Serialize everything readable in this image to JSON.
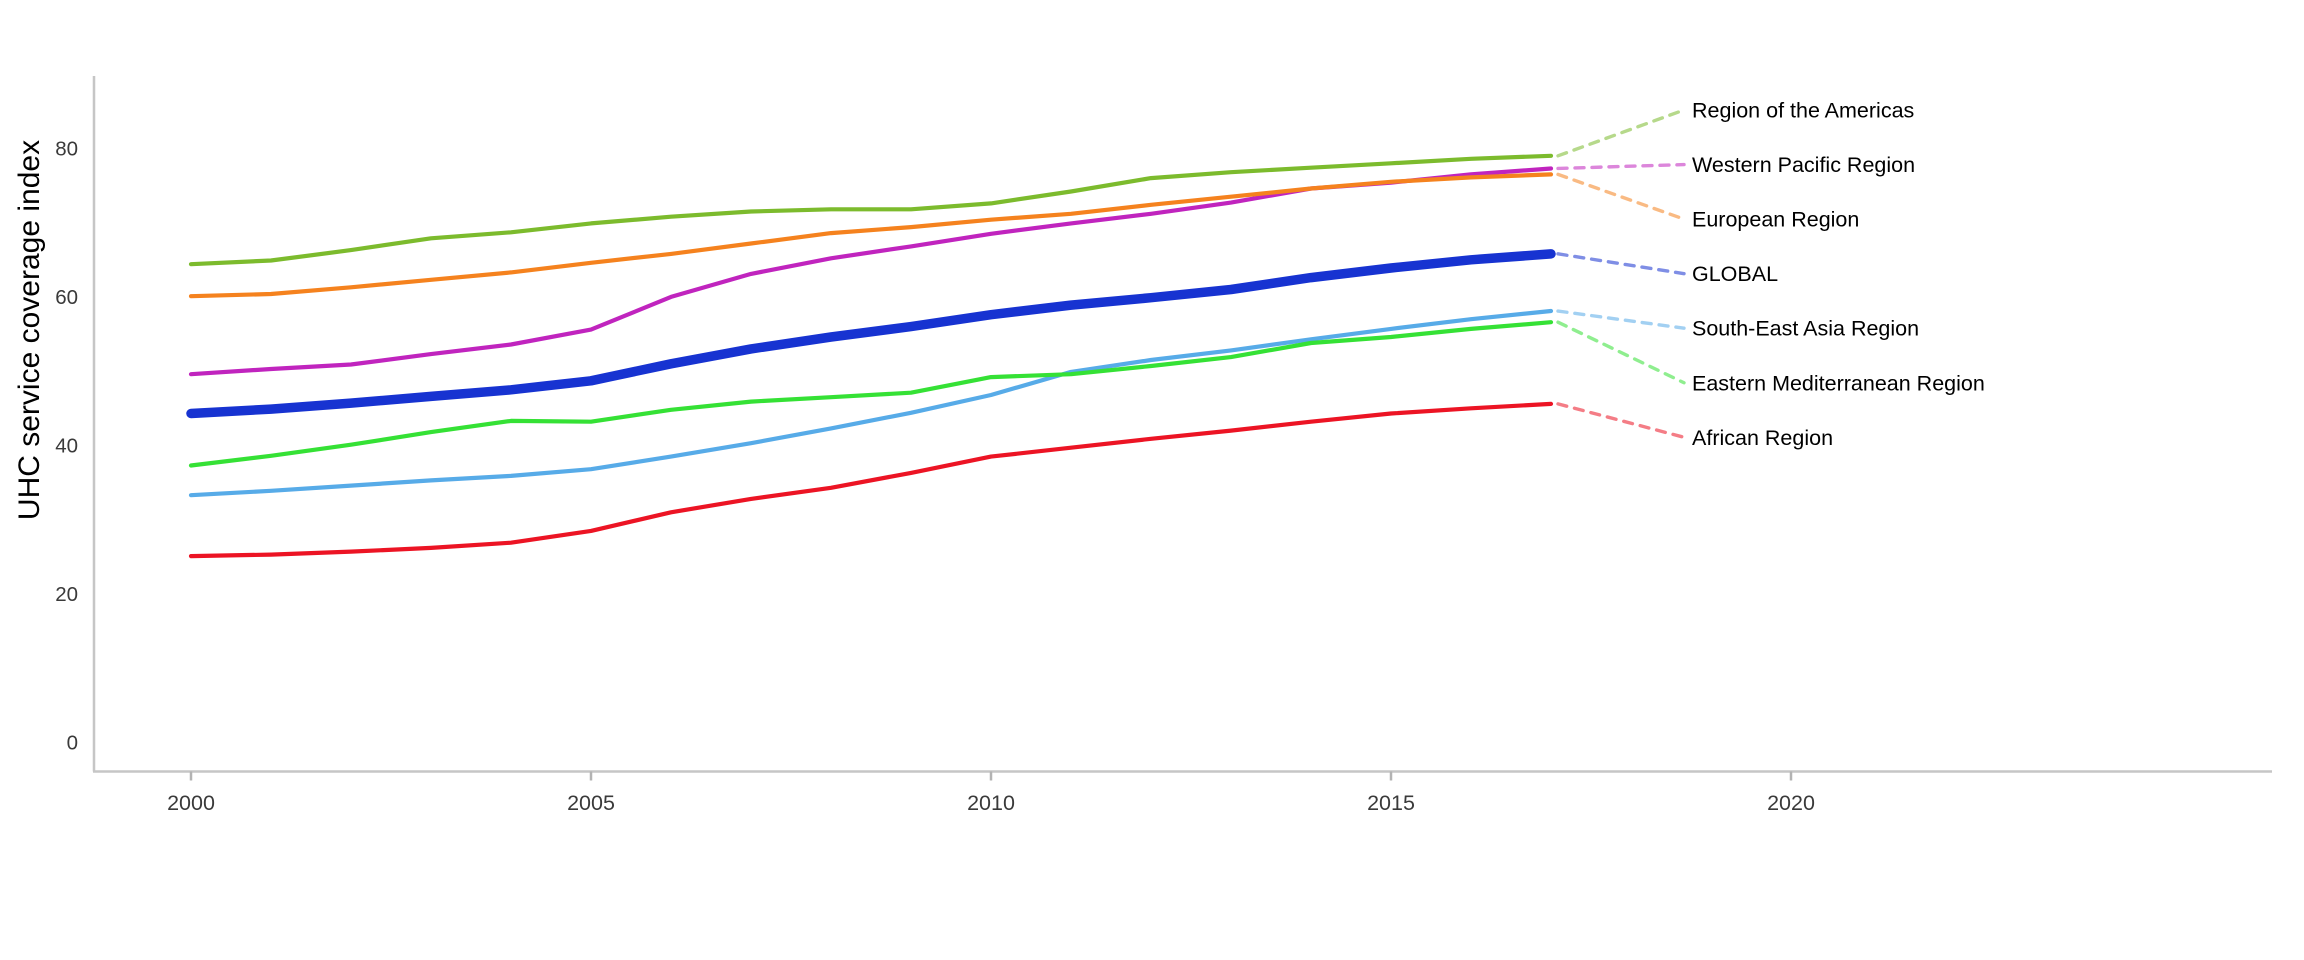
{
  "figure": {
    "background": "#ffffff",
    "axis_color": "#c6c6c6",
    "tick_label_color": "#3a3a3a",
    "label_text_color": "#000000"
  },
  "chart_data": {
    "type": "line",
    "title": "",
    "xlabel": "",
    "ylabel": "UHC service coverage index",
    "grid": false,
    "legend_position": "right-edge-dashed-leader-labels",
    "xlim": [
      1998.8,
      2026.0
    ],
    "ylim": [
      -3.9,
      89.8
    ],
    "x_ticks": [
      2000,
      2005,
      2010,
      2015,
      2020
    ],
    "y_ticks": [
      0,
      20,
      40,
      60,
      80
    ],
    "x": [
      2000,
      2001,
      2002,
      2003,
      2004,
      2005,
      2006,
      2007,
      2008,
      2009,
      2010,
      2011,
      2012,
      2013,
      2014,
      2015,
      2016,
      2017
    ],
    "series": [
      {
        "name": "Region of the Americas",
        "color": "#7CBB2D",
        "emphasis": false,
        "values": [
          64.4,
          64.9,
          66.3,
          67.9,
          68.7,
          69.9,
          70.8,
          71.5,
          71.8,
          71.8,
          72.6,
          74.2,
          76.0,
          76.8,
          77.4,
          78.0,
          78.6,
          79.0
        ]
      },
      {
        "name": "Western Pacific Region",
        "color": "#C024BE",
        "emphasis": false,
        "values": [
          49.6,
          50.3,
          50.9,
          52.3,
          53.6,
          55.6,
          60.0,
          63.1,
          65.2,
          66.8,
          68.5,
          69.9,
          71.2,
          72.7,
          74.6,
          75.4,
          76.5,
          77.3
        ]
      },
      {
        "name": "European Region",
        "color": "#F5821E",
        "emphasis": false,
        "values": [
          60.1,
          60.4,
          61.3,
          62.3,
          63.3,
          64.6,
          65.8,
          67.2,
          68.6,
          69.4,
          70.4,
          71.2,
          72.4,
          73.5,
          74.6,
          75.5,
          76.1,
          76.5
        ]
      },
      {
        "name": "GLOBAL",
        "color": "#1733D1",
        "emphasis": true,
        "values": [
          44.3,
          44.9,
          45.7,
          46.6,
          47.5,
          48.7,
          51.0,
          53.0,
          54.6,
          56.0,
          57.6,
          58.9,
          59.9,
          61.0,
          62.6,
          63.9,
          65.0,
          65.8
        ]
      },
      {
        "name": "South-East Asia Region",
        "color": "#57ABE8",
        "emphasis": false,
        "values": [
          33.3,
          33.9,
          34.6,
          35.3,
          35.9,
          36.8,
          38.5,
          40.3,
          42.3,
          44.4,
          46.8,
          49.9,
          51.5,
          52.8,
          54.3,
          55.7,
          57.0,
          58.1
        ]
      },
      {
        "name": "Eastern Mediterranean Region",
        "color": "#35E135",
        "emphasis": false,
        "values": [
          37.3,
          38.6,
          40.1,
          41.8,
          43.3,
          43.2,
          44.8,
          45.9,
          46.5,
          47.1,
          49.2,
          49.6,
          50.7,
          51.9,
          53.8,
          54.6,
          55.7,
          56.6
        ]
      },
      {
        "name": "African Region",
        "color": "#EC1424",
        "emphasis": false,
        "values": [
          25.1,
          25.3,
          25.7,
          26.2,
          26.9,
          28.5,
          31.0,
          32.8,
          34.3,
          36.3,
          38.5,
          39.7,
          40.9,
          42.0,
          43.2,
          44.3,
          45.0,
          45.6
        ]
      }
    ]
  }
}
